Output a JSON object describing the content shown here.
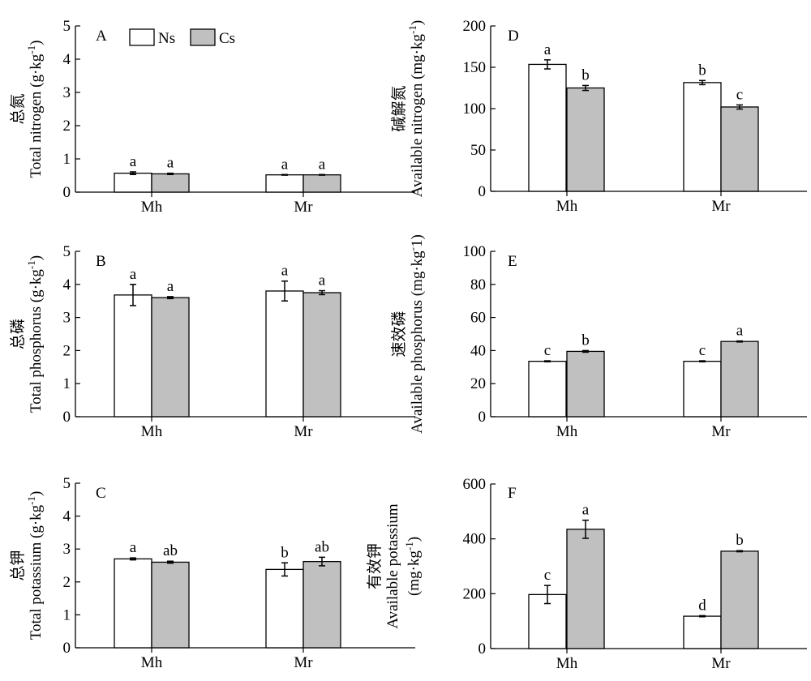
{
  "legend": {
    "items": [
      {
        "name": "Ns",
        "color": "#ffffff"
      },
      {
        "name": "Cs",
        "color": "#c0c0c0"
      }
    ]
  },
  "chart_data": [
    {
      "type": "bar",
      "panel": "A",
      "ylabel_cn": "总氮",
      "ylabel_en": "Total nitrogen (g·kg",
      "ylabel_sup": "-1",
      "ylabel_end": ")",
      "categories": [
        "Mh",
        "Mr"
      ],
      "ylim": [
        0,
        5
      ],
      "yticks": [
        "0",
        "1",
        "2",
        "3",
        "4",
        "5"
      ],
      "series": [
        {
          "name": "Ns",
          "values": [
            0.57,
            0.52
          ],
          "errors": [
            0.04,
            0.01
          ],
          "letters": [
            "a",
            "a"
          ]
        },
        {
          "name": "Cs",
          "values": [
            0.55,
            0.52
          ],
          "errors": [
            0.02,
            0.01
          ],
          "letters": [
            "a",
            "a"
          ]
        }
      ]
    },
    {
      "type": "bar",
      "panel": "B",
      "ylabel_cn": "总磷",
      "ylabel_en": "Total phosphorus (g·kg",
      "ylabel_sup": "-1",
      "ylabel_end": ")",
      "categories": [
        "Mh",
        "Mr"
      ],
      "ylim": [
        0,
        5
      ],
      "yticks": [
        "0",
        "1",
        "2",
        "3",
        "4",
        "5"
      ],
      "series": [
        {
          "name": "Ns",
          "values": [
            3.68,
            3.8
          ],
          "errors": [
            0.32,
            0.3
          ],
          "letters": [
            "a",
            "a"
          ]
        },
        {
          "name": "Cs",
          "values": [
            3.6,
            3.75
          ],
          "errors": [
            0.03,
            0.06
          ],
          "letters": [
            "a",
            "a"
          ]
        }
      ]
    },
    {
      "type": "bar",
      "panel": "C",
      "ylabel_cn": "总钾",
      "ylabel_en": "Total potassium (g·kg",
      "ylabel_sup": "-1",
      "ylabel_end": ")",
      "categories": [
        "Mh",
        "Mr"
      ],
      "ylim": [
        0,
        5
      ],
      "yticks": [
        "0",
        "1",
        "2",
        "3",
        "4",
        "5"
      ],
      "series": [
        {
          "name": "Ns",
          "values": [
            2.7,
            2.38
          ],
          "errors": [
            0.03,
            0.2
          ],
          "letters": [
            "a",
            "b"
          ]
        },
        {
          "name": "Cs",
          "values": [
            2.6,
            2.62
          ],
          "errors": [
            0.03,
            0.13
          ],
          "letters": [
            "ab",
            "ab"
          ]
        }
      ]
    },
    {
      "type": "bar",
      "panel": "D",
      "ylabel_cn": "碱解氮",
      "ylabel_en": "Available nitrogen (mg·kg",
      "ylabel_sup": "-1",
      "ylabel_end": ")",
      "categories": [
        "Mh",
        "Mr"
      ],
      "ylim": [
        0,
        200
      ],
      "yticks": [
        "0",
        "50",
        "100",
        "150",
        "200"
      ],
      "series": [
        {
          "name": "Ns",
          "values": [
            153.5,
            131.5
          ],
          "errors": [
            5.5,
            2.5
          ],
          "letters": [
            "a",
            "b"
          ]
        },
        {
          "name": "Cs",
          "values": [
            125,
            102
          ],
          "errors": [
            3,
            2.5
          ],
          "letters": [
            "b",
            "c"
          ]
        }
      ]
    },
    {
      "type": "bar",
      "panel": "E",
      "ylabel_cn": "速效磷",
      "ylabel_en": "Available phosphorus (mg·kg",
      "ylabel_sup": "-",
      "ylabel_end": "1)",
      "categories": [
        "Mh",
        "Mr"
      ],
      "ylim": [
        0,
        100
      ],
      "yticks": [
        "0",
        "20",
        "40",
        "60",
        "80",
        "100"
      ],
      "series": [
        {
          "name": "Ns",
          "values": [
            33.5,
            33.5
          ],
          "errors": [
            0.3,
            0.3
          ],
          "letters": [
            "c",
            "c"
          ]
        },
        {
          "name": "Cs",
          "values": [
            39.5,
            45.5
          ],
          "errors": [
            0.5,
            0.3
          ],
          "letters": [
            "b",
            "a"
          ]
        }
      ]
    },
    {
      "type": "bar",
      "panel": "F",
      "ylabel_cn": "有效钾",
      "ylabel_en": "Available potassium",
      "ylabel_en2": "(mg·kg",
      "ylabel_sup": "-1",
      "ylabel_end": ")",
      "categories": [
        "Mh",
        "Mr"
      ],
      "ylim": [
        0,
        600
      ],
      "yticks": [
        "0",
        "200",
        "400",
        "600"
      ],
      "series": [
        {
          "name": "Ns",
          "values": [
            197,
            118
          ],
          "errors": [
            33,
            2
          ],
          "letters": [
            "c",
            "d"
          ]
        },
        {
          "name": "Cs",
          "values": [
            435,
            355
          ],
          "errors": [
            33,
            2
          ],
          "letters": [
            "a",
            "b"
          ]
        }
      ]
    }
  ]
}
